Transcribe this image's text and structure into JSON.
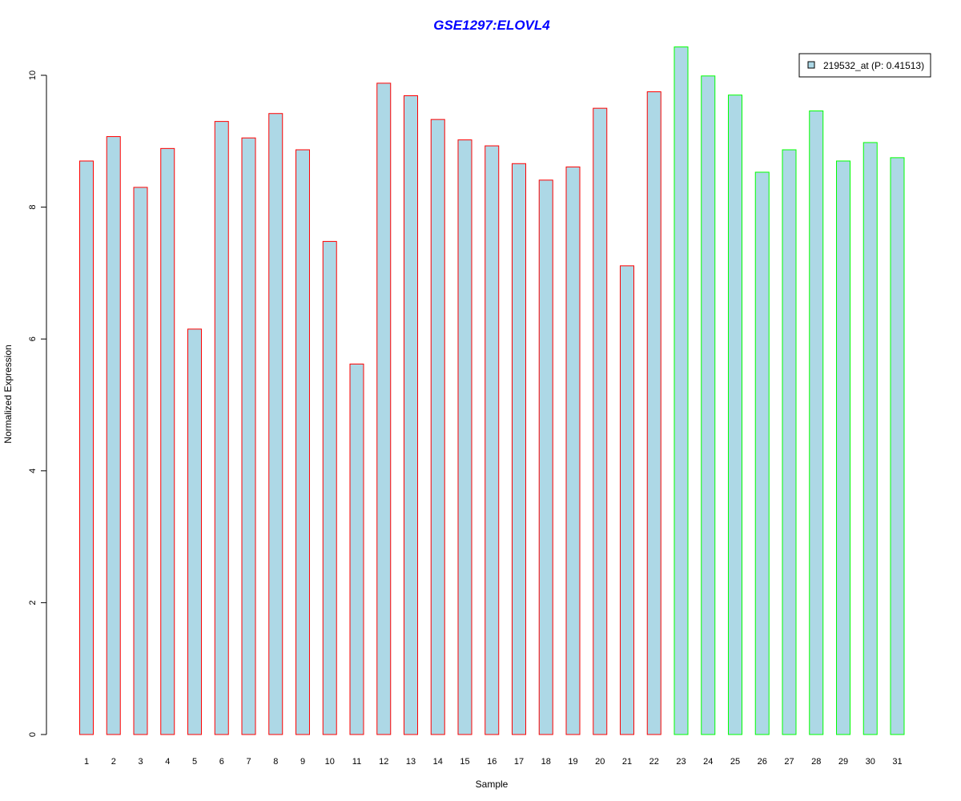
{
  "chart_data": {
    "type": "bar",
    "title": "GSE1297:ELOVL4",
    "xlabel": "Sample",
    "ylabel": "Normalized Expression",
    "ylim": [
      0,
      10
    ],
    "yticks": [
      0,
      2,
      4,
      6,
      8,
      10
    ],
    "grid": false,
    "categories": [
      "1",
      "2",
      "3",
      "4",
      "5",
      "6",
      "7",
      "8",
      "9",
      "10",
      "11",
      "12",
      "13",
      "14",
      "15",
      "16",
      "17",
      "18",
      "19",
      "20",
      "21",
      "22",
      "23",
      "24",
      "25",
      "26",
      "27",
      "28",
      "29",
      "30",
      "31"
    ],
    "values": [
      8.7,
      9.07,
      8.3,
      8.89,
      6.15,
      9.3,
      9.05,
      9.42,
      8.87,
      7.48,
      5.62,
      9.88,
      9.69,
      9.33,
      9.02,
      8.93,
      8.66,
      8.41,
      8.61,
      9.5,
      7.11,
      9.75,
      10.43,
      9.99,
      9.7,
      8.53,
      8.87,
      9.46,
      8.7,
      8.98,
      8.75
    ],
    "series": [
      {
        "name": "219532_at (P: 0.41513)",
        "values": [
          8.7,
          9.07,
          8.3,
          8.89,
          6.15,
          9.3,
          9.05,
          9.42,
          8.87,
          7.48,
          5.62,
          9.88,
          9.69,
          9.33,
          9.02,
          8.93,
          8.66,
          8.41,
          8.61,
          9.5,
          7.11,
          9.75,
          10.43,
          9.99,
          9.7,
          8.53,
          8.87,
          9.46,
          8.7,
          8.98,
          8.75
        ]
      }
    ],
    "groups": [
      {
        "samples": "1-22",
        "border_color": "#ff0000"
      },
      {
        "samples": "23-31",
        "border_color": "#00ff00"
      }
    ],
    "legend": {
      "label": "219532_at (P: 0.41513)",
      "placement": "top-right"
    },
    "colors": {
      "bar_fill": "#add8e6",
      "group1_border": "#ff0000",
      "group2_border": "#00ff00",
      "title": "#0000ff",
      "axis": "#000000"
    }
  }
}
